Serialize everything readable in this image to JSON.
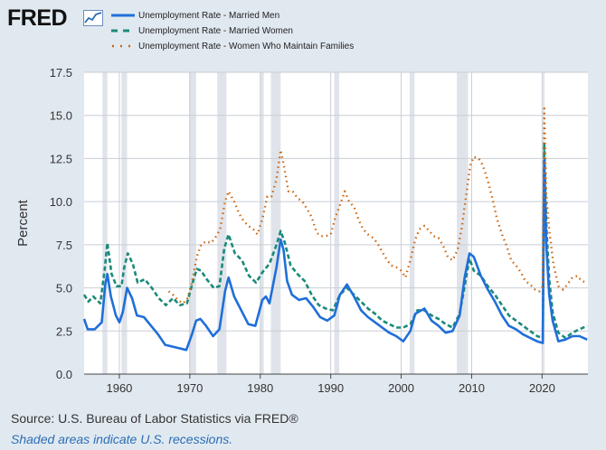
{
  "header": {
    "logo_text": "FRED",
    "logo_icon": "line-graph-icon"
  },
  "chart_data": {
    "type": "line",
    "title": "",
    "ylabel": "Percent",
    "xlabel": "",
    "xlim": [
      1955,
      2026.5
    ],
    "ylim": [
      0,
      17.5
    ],
    "yticks": [
      "0.0",
      "2.5",
      "5.0",
      "7.5",
      "10.0",
      "12.5",
      "15.0",
      "17.5"
    ],
    "xticks": [
      "1960",
      "1970",
      "1980",
      "1990",
      "2000",
      "2010",
      "2020"
    ],
    "grid": true,
    "legend_position": "top",
    "recessions": [
      [
        1957.6,
        1958.3
      ],
      [
        1960.3,
        1961.1
      ],
      [
        1969.9,
        1970.9
      ],
      [
        1973.9,
        1975.2
      ],
      [
        1980.0,
        1980.5
      ],
      [
        1981.5,
        1982.9
      ],
      [
        1990.5,
        1991.2
      ],
      [
        2001.2,
        2001.9
      ],
      [
        2007.9,
        2009.5
      ],
      [
        2020.1,
        2020.3
      ]
    ],
    "series": [
      {
        "name": "Unemployment Rate - Married Men",
        "color": "#1f6fd8",
        "style": "solid",
        "points": [
          [
            1955.0,
            3.2
          ],
          [
            1955.5,
            2.6
          ],
          [
            1956.5,
            2.6
          ],
          [
            1957.5,
            3.0
          ],
          [
            1958.0,
            5.2
          ],
          [
            1958.3,
            5.8
          ],
          [
            1958.8,
            4.5
          ],
          [
            1959.5,
            3.4
          ],
          [
            1960.0,
            3.0
          ],
          [
            1960.5,
            3.6
          ],
          [
            1961.1,
            5.0
          ],
          [
            1961.8,
            4.4
          ],
          [
            1962.5,
            3.4
          ],
          [
            1963.5,
            3.3
          ],
          [
            1964.5,
            2.8
          ],
          [
            1965.5,
            2.3
          ],
          [
            1966.5,
            1.7
          ],
          [
            1967.5,
            1.6
          ],
          [
            1968.5,
            1.5
          ],
          [
            1969.5,
            1.4
          ],
          [
            1970.3,
            2.3
          ],
          [
            1970.9,
            3.1
          ],
          [
            1971.5,
            3.2
          ],
          [
            1972.3,
            2.8
          ],
          [
            1973.3,
            2.2
          ],
          [
            1974.2,
            2.6
          ],
          [
            1975.0,
            4.8
          ],
          [
            1975.5,
            5.6
          ],
          [
            1976.3,
            4.5
          ],
          [
            1977.3,
            3.7
          ],
          [
            1978.3,
            2.9
          ],
          [
            1979.3,
            2.8
          ],
          [
            1980.3,
            4.3
          ],
          [
            1980.8,
            4.5
          ],
          [
            1981.3,
            4.1
          ],
          [
            1982.3,
            6.2
          ],
          [
            1982.9,
            7.8
          ],
          [
            1983.3,
            7.2
          ],
          [
            1983.8,
            5.4
          ],
          [
            1984.5,
            4.6
          ],
          [
            1985.5,
            4.3
          ],
          [
            1986.5,
            4.4
          ],
          [
            1987.5,
            3.9
          ],
          [
            1988.5,
            3.3
          ],
          [
            1989.5,
            3.1
          ],
          [
            1990.5,
            3.4
          ],
          [
            1991.3,
            4.6
          ],
          [
            1992.3,
            5.2
          ],
          [
            1993.3,
            4.5
          ],
          [
            1994.3,
            3.7
          ],
          [
            1995.3,
            3.3
          ],
          [
            1996.3,
            3.0
          ],
          [
            1997.3,
            2.7
          ],
          [
            1998.3,
            2.4
          ],
          [
            1999.3,
            2.2
          ],
          [
            2000.3,
            1.9
          ],
          [
            2001.3,
            2.5
          ],
          [
            2002.0,
            3.5
          ],
          [
            2003.3,
            3.8
          ],
          [
            2004.3,
            3.1
          ],
          [
            2005.3,
            2.8
          ],
          [
            2006.3,
            2.4
          ],
          [
            2007.3,
            2.5
          ],
          [
            2008.3,
            3.4
          ],
          [
            2009.0,
            5.6
          ],
          [
            2009.7,
            7.0
          ],
          [
            2010.3,
            6.8
          ],
          [
            2011.3,
            5.7
          ],
          [
            2012.3,
            4.9
          ],
          [
            2013.3,
            4.2
          ],
          [
            2014.3,
            3.4
          ],
          [
            2015.3,
            2.8
          ],
          [
            2016.3,
            2.6
          ],
          [
            2017.3,
            2.3
          ],
          [
            2018.3,
            2.1
          ],
          [
            2019.3,
            1.9
          ],
          [
            2020.1,
            1.8
          ],
          [
            2020.3,
            12.4
          ],
          [
            2020.6,
            7.5
          ],
          [
            2021.0,
            4.6
          ],
          [
            2021.5,
            3.1
          ],
          [
            2022.3,
            1.9
          ],
          [
            2023.3,
            2.0
          ],
          [
            2024.3,
            2.2
          ],
          [
            2025.3,
            2.2
          ],
          [
            2026.4,
            2.0
          ]
        ]
      },
      {
        "name": "Unemployment Rate - Married Women",
        "color": "#1a8a7a",
        "style": "dashed",
        "points": [
          [
            1955.0,
            4.6
          ],
          [
            1955.6,
            4.2
          ],
          [
            1956.3,
            4.5
          ],
          [
            1957.3,
            4.1
          ],
          [
            1957.9,
            6.0
          ],
          [
            1958.3,
            7.6
          ],
          [
            1958.9,
            5.8
          ],
          [
            1959.6,
            5.1
          ],
          [
            1960.3,
            5.1
          ],
          [
            1960.7,
            6.2
          ],
          [
            1961.2,
            7.0
          ],
          [
            1961.9,
            6.4
          ],
          [
            1962.6,
            5.3
          ],
          [
            1963.6,
            5.5
          ],
          [
            1964.6,
            5.0
          ],
          [
            1965.6,
            4.4
          ],
          [
            1966.6,
            4.0
          ],
          [
            1967.6,
            4.4
          ],
          [
            1968.6,
            4.0
          ],
          [
            1969.6,
            4.1
          ],
          [
            1970.4,
            5.3
          ],
          [
            1971.0,
            6.1
          ],
          [
            1971.6,
            6.0
          ],
          [
            1972.4,
            5.5
          ],
          [
            1973.4,
            5.0
          ],
          [
            1974.2,
            5.1
          ],
          [
            1974.9,
            7.3
          ],
          [
            1975.5,
            8.1
          ],
          [
            1976.4,
            7.0
          ],
          [
            1977.4,
            6.6
          ],
          [
            1978.4,
            5.7
          ],
          [
            1979.4,
            5.3
          ],
          [
            1980.3,
            5.9
          ],
          [
            1981.3,
            6.4
          ],
          [
            1982.3,
            7.5
          ],
          [
            1982.9,
            8.3
          ],
          [
            1983.5,
            7.6
          ],
          [
            1984.3,
            6.3
          ],
          [
            1985.3,
            5.8
          ],
          [
            1986.3,
            5.4
          ],
          [
            1987.3,
            4.6
          ],
          [
            1988.3,
            4.0
          ],
          [
            1989.3,
            3.8
          ],
          [
            1990.3,
            3.7
          ],
          [
            1991.3,
            4.6
          ],
          [
            1992.3,
            5.0
          ],
          [
            1993.3,
            4.6
          ],
          [
            1994.3,
            4.2
          ],
          [
            1995.3,
            3.8
          ],
          [
            1996.3,
            3.5
          ],
          [
            1997.3,
            3.1
          ],
          [
            1998.3,
            2.9
          ],
          [
            1999.3,
            2.7
          ],
          [
            2000.3,
            2.7
          ],
          [
            2001.3,
            2.9
          ],
          [
            2002.3,
            3.7
          ],
          [
            2003.3,
            3.7
          ],
          [
            2004.3,
            3.4
          ],
          [
            2005.3,
            3.2
          ],
          [
            2006.3,
            2.9
          ],
          [
            2007.3,
            2.7
          ],
          [
            2008.3,
            3.5
          ],
          [
            2009.0,
            5.1
          ],
          [
            2009.7,
            6.7
          ],
          [
            2010.3,
            6.0
          ],
          [
            2011.3,
            5.7
          ],
          [
            2012.3,
            5.1
          ],
          [
            2013.3,
            4.6
          ],
          [
            2014.3,
            4.0
          ],
          [
            2015.3,
            3.4
          ],
          [
            2016.3,
            3.1
          ],
          [
            2017.3,
            2.8
          ],
          [
            2018.3,
            2.5
          ],
          [
            2019.3,
            2.2
          ],
          [
            2020.1,
            2.1
          ],
          [
            2020.3,
            13.4
          ],
          [
            2020.6,
            8.7
          ],
          [
            2021.0,
            5.5
          ],
          [
            2021.5,
            3.6
          ],
          [
            2022.3,
            2.4
          ],
          [
            2023.3,
            2.1
          ],
          [
            2024.3,
            2.4
          ],
          [
            2025.3,
            2.6
          ],
          [
            2026.4,
            2.8
          ]
        ]
      },
      {
        "name": "Unemployment Rate - Women Who Maintain Families",
        "color": "#cc6611",
        "style": "dotted",
        "points": [
          [
            1967.0,
            4.8
          ],
          [
            1967.6,
            4.6
          ],
          [
            1968.3,
            4.3
          ],
          [
            1969.0,
            4.1
          ],
          [
            1969.6,
            4.3
          ],
          [
            1970.3,
            5.3
          ],
          [
            1971.0,
            6.8
          ],
          [
            1971.6,
            7.5
          ],
          [
            1972.3,
            7.7
          ],
          [
            1973.0,
            7.6
          ],
          [
            1973.6,
            7.9
          ],
          [
            1974.3,
            8.4
          ],
          [
            1975.0,
            10.0
          ],
          [
            1975.5,
            10.6
          ],
          [
            1976.3,
            10.0
          ],
          [
            1977.0,
            9.3
          ],
          [
            1977.6,
            8.9
          ],
          [
            1978.3,
            8.6
          ],
          [
            1979.0,
            8.4
          ],
          [
            1979.6,
            8.1
          ],
          [
            1980.3,
            9.0
          ],
          [
            1981.0,
            10.3
          ],
          [
            1981.6,
            10.3
          ],
          [
            1982.3,
            11.3
          ],
          [
            1982.9,
            13.0
          ],
          [
            1983.4,
            12.0
          ],
          [
            1984.0,
            10.6
          ],
          [
            1984.6,
            10.6
          ],
          [
            1985.3,
            10.2
          ],
          [
            1986.0,
            10.0
          ],
          [
            1986.6,
            9.6
          ],
          [
            1987.3,
            9.1
          ],
          [
            1988.0,
            8.2
          ],
          [
            1988.6,
            8.0
          ],
          [
            1989.3,
            8.0
          ],
          [
            1990.0,
            8.1
          ],
          [
            1990.6,
            9.0
          ],
          [
            1991.3,
            9.8
          ],
          [
            1992.0,
            10.6
          ],
          [
            1992.6,
            10.0
          ],
          [
            1993.3,
            9.7
          ],
          [
            1994.0,
            8.9
          ],
          [
            1994.6,
            8.4
          ],
          [
            1995.3,
            8.1
          ],
          [
            1996.0,
            7.9
          ],
          [
            1996.6,
            7.6
          ],
          [
            1997.3,
            7.1
          ],
          [
            1998.0,
            6.6
          ],
          [
            1998.6,
            6.3
          ],
          [
            1999.3,
            6.2
          ],
          [
            2000.0,
            6.0
          ],
          [
            2000.6,
            5.6
          ],
          [
            2001.3,
            6.6
          ],
          [
            2002.0,
            7.8
          ],
          [
            2002.6,
            8.4
          ],
          [
            2003.3,
            8.6
          ],
          [
            2004.0,
            8.3
          ],
          [
            2004.6,
            8.0
          ],
          [
            2005.3,
            7.9
          ],
          [
            2006.0,
            7.4
          ],
          [
            2006.6,
            6.8
          ],
          [
            2007.3,
            6.6
          ],
          [
            2008.0,
            7.2
          ],
          [
            2008.6,
            8.5
          ],
          [
            2009.3,
            10.6
          ],
          [
            2009.8,
            12.1
          ],
          [
            2010.3,
            12.6
          ],
          [
            2011.0,
            12.5
          ],
          [
            2011.6,
            12.1
          ],
          [
            2012.3,
            11.2
          ],
          [
            2013.0,
            10.1
          ],
          [
            2013.6,
            9.0
          ],
          [
            2014.3,
            8.1
          ],
          [
            2015.0,
            7.4
          ],
          [
            2015.6,
            6.6
          ],
          [
            2016.3,
            6.3
          ],
          [
            2017.0,
            5.9
          ],
          [
            2017.6,
            5.4
          ],
          [
            2018.3,
            5.2
          ],
          [
            2019.0,
            4.9
          ],
          [
            2019.6,
            4.8
          ],
          [
            2020.1,
            5.1
          ],
          [
            2020.3,
            15.4
          ],
          [
            2020.6,
            10.4
          ],
          [
            2021.0,
            8.4
          ],
          [
            2021.6,
            6.4
          ],
          [
            2022.3,
            5.1
          ],
          [
            2023.0,
            4.9
          ],
          [
            2023.6,
            5.2
          ],
          [
            2024.3,
            5.6
          ],
          [
            2025.0,
            5.7
          ],
          [
            2025.6,
            5.4
          ],
          [
            2026.4,
            5.3
          ]
        ]
      }
    ]
  },
  "footer": {
    "source": "Source: U.S. Bureau of Labor Statistics via FRED®",
    "note": "Shaded areas indicate U.S. recessions."
  }
}
